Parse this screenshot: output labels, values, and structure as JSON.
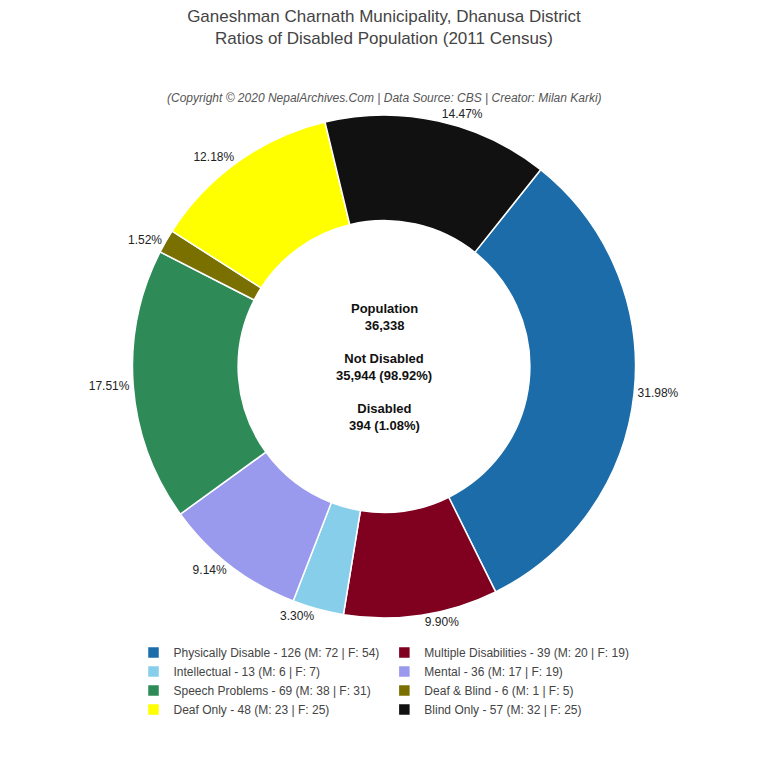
{
  "chart_data": {
    "type": "pie",
    "title": "Ganeshman Charnath Municipality, Dhanusa District\nRatios of Disabled Population (2011 Census)",
    "subtitle": "(Copyright © 2020 NepalArchives.Com | Data Source: CBS | Creator: Milan Karki)",
    "annotations": [
      "Population\n36,338",
      "Not Disabled\n35,944 (98.92%)",
      "Disabled\n394 (1.08%)"
    ],
    "categories": [
      "Physically Disable - 126 (M: 72 | F: 54)",
      "Multiple Disabilities - 39 (M: 20 | F: 19)",
      "Intellectual - 13 (M: 6 | F: 7)",
      "Mental - 36 (M: 17 | F: 19)",
      "Speech Problems - 69 (M: 38 | F: 31)",
      "Deaf & Blind - 6 (M: 1 | F: 5)",
      "Deaf Only - 48 (M: 23 | F: 25)",
      "Blind Only - 57 (M: 32 | F: 25)"
    ],
    "values": [
      31.98,
      9.9,
      3.3,
      9.14,
      17.51,
      1.52,
      12.18,
      14.47
    ],
    "value_labels": [
      "31.98%",
      "9.90%",
      "3.30%",
      "9.14%",
      "17.51%",
      "1.52%",
      "12.18%",
      "14.47%"
    ],
    "colors": [
      "#1b6ca8",
      "#800020",
      "#87ceeb",
      "#9999ee",
      "#2e8b57",
      "#7a7000",
      "#ffff00",
      "#111111"
    ],
    "data_labels": true,
    "legend": "bottom"
  }
}
